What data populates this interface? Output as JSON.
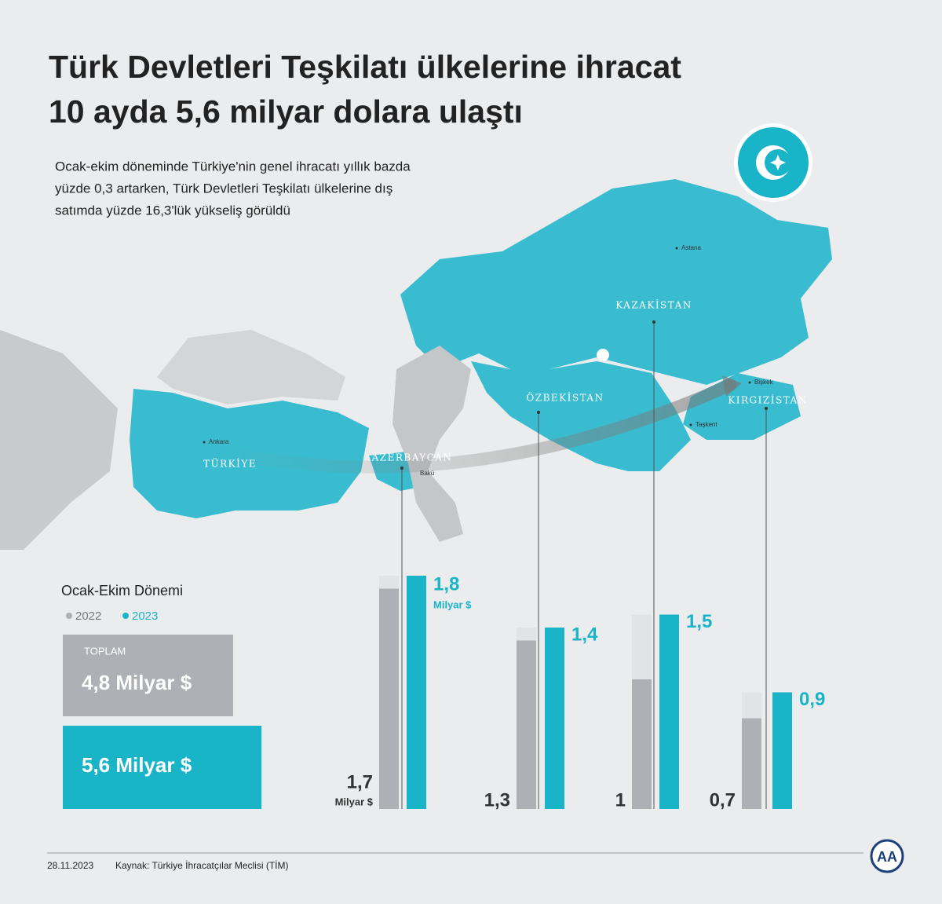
{
  "chart_data": {
    "type": "bar",
    "title": [
      "Türk Devletleri Teşkilatı ülkelerine ihracat",
      "10 ayda 5,6 milyar dolara ulaştı"
    ],
    "subtitle": [
      "Ocak-ekim döneminde Türkiye'nin genel ihracatı yıllık bazda",
      "yüzde 0,3 artarken, Türk Devletleri Teşkilatı ülkelerine dış",
      "satımda yüzde 16,3'lük yükseliş görüldü"
    ],
    "period": "Ocak-Ekim Dönemi",
    "unit": "Milyar $",
    "categories": [
      "AZERBAYCAN",
      "ÖZBEKİSTAN",
      "KAZAKİSTAN",
      "KIRGIZİSTAN"
    ],
    "series": [
      {
        "name": "2022",
        "color": "#aeb0b5",
        "values": [
          1.7,
          1.3,
          1,
          0.7
        ],
        "value_labels": [
          "1,7",
          "1,3",
          "1",
          "0,7"
        ]
      },
      {
        "name": "2023",
        "color": "#1ab4c9",
        "values": [
          1.8,
          1.4,
          1.5,
          0.9
        ],
        "value_labels": [
          "1,8",
          "1,4",
          "1,5",
          "0,9"
        ]
      }
    ],
    "totals": {
      "label": "TOPLAM",
      "values": [
        4.8,
        5.6
      ],
      "value_labels": [
        "4,8 Milyar $",
        "5,6 Milyar $"
      ]
    },
    "map_labels": {
      "turkey": "TÜRKİYE",
      "cities": [
        "Ankara",
        "Bakü",
        "Astana",
        "Bişkek",
        "Taşkent"
      ]
    },
    "date": "28.11.2023",
    "source": "Kaynak: Türkiye İhracatçılar Meclisi (TİM)"
  }
}
